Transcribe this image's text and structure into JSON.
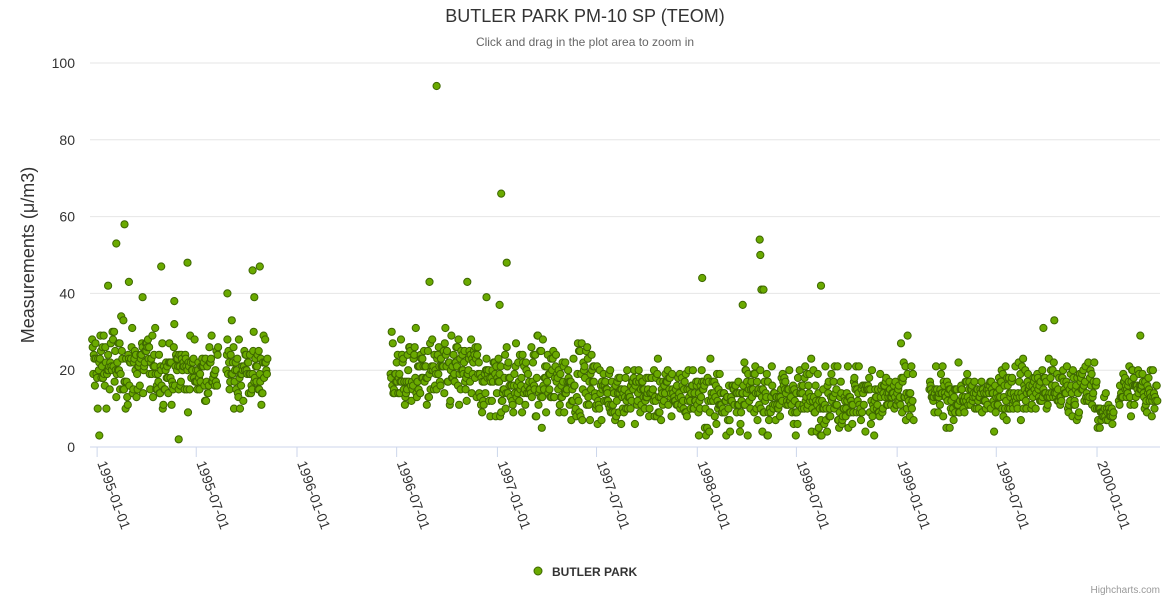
{
  "chart_data": {
    "type": "scatter",
    "title": "BUTLER PARK PM-10 SP (TEOM)",
    "subtitle": "Click and drag in the plot area to zoom in",
    "ylabel": "Measurements (μ/m3)",
    "xlabel": "",
    "ylim": [
      0,
      100
    ],
    "yticks": [
      0,
      20,
      40,
      60,
      80,
      100
    ],
    "xlim": [
      "1994-12-19",
      "2000-04-25"
    ],
    "xticks": [
      "1995-01-01",
      "1995-07-01",
      "1996-01-01",
      "1996-07-01",
      "1997-01-01",
      "1997-07-01",
      "1998-01-01",
      "1998-07-01",
      "1999-01-01",
      "1999-07-01",
      "2000-01-01"
    ],
    "grid": true,
    "legend": "bottom-center",
    "series": [
      {
        "name": "BUTLER PARK",
        "color": "#6aaa00",
        "note": "Daily samples (~1 per day) with gaps; representative values, plus notable peaks",
        "segments": [
          {
            "start": "1994-12-23",
            "end": "1995-04-08",
            "mean": 21,
            "spread": 9
          },
          {
            "start": "1995-04-09",
            "end": "1995-08-10",
            "mean": 20,
            "spread": 7
          },
          {
            "start": "1995-08-25",
            "end": "1995-11-08",
            "mean": 20,
            "spread": 8
          },
          {
            "start": "1996-06-20",
            "end": "1996-11-30",
            "mean": 19,
            "spread": 8
          },
          {
            "start": "1996-12-01",
            "end": "1997-06-30",
            "mean": 17,
            "spread": 8
          },
          {
            "start": "1997-07-01",
            "end": "1997-12-31",
            "mean": 14,
            "spread": 6
          },
          {
            "start": "1998-01-01",
            "end": "1998-06-30",
            "mean": 13,
            "spread": 7
          },
          {
            "start": "1998-07-01",
            "end": "1998-12-31",
            "mean": 13,
            "spread": 7
          },
          {
            "start": "1999-01-01",
            "end": "1999-01-31",
            "mean": 13,
            "spread": 8
          },
          {
            "start": "1999-03-01",
            "end": "1999-06-30",
            "mean": 13,
            "spread": 5
          },
          {
            "start": "1999-07-01",
            "end": "1999-12-31",
            "mean": 15,
            "spread": 6
          },
          {
            "start": "2000-01-01",
            "end": "2000-01-31",
            "mean": 9,
            "spread": 3
          },
          {
            "start": "2000-02-10",
            "end": "2000-04-20",
            "mean": 15,
            "spread": 6
          }
        ],
        "peaks": [
          {
            "date": "1996-09-12",
            "value": 94
          },
          {
            "date": "1997-01-08",
            "value": 66
          },
          {
            "date": "1995-02-20",
            "value": 58
          },
          {
            "date": "1998-04-25",
            "value": 54
          },
          {
            "date": "1995-02-05",
            "value": 53
          },
          {
            "date": "1998-04-26",
            "value": 50
          },
          {
            "date": "1997-01-18",
            "value": 48
          },
          {
            "date": "1995-06-15",
            "value": 48
          },
          {
            "date": "1995-04-28",
            "value": 47
          },
          {
            "date": "1995-10-25",
            "value": 47
          },
          {
            "date": "1995-10-12",
            "value": 46
          },
          {
            "date": "1998-01-10",
            "value": 44
          },
          {
            "date": "1996-08-30",
            "value": 43
          },
          {
            "date": "1996-11-07",
            "value": 43
          },
          {
            "date": "1995-02-28",
            "value": 43
          },
          {
            "date": "1998-08-15",
            "value": 42
          },
          {
            "date": "1995-01-21",
            "value": 42
          },
          {
            "date": "1998-04-28",
            "value": 41
          },
          {
            "date": "1998-05-02",
            "value": 41
          },
          {
            "date": "1995-08-27",
            "value": 40
          },
          {
            "date": "1996-12-12",
            "value": 39
          },
          {
            "date": "1995-03-25",
            "value": 39
          },
          {
            "date": "1995-10-15",
            "value": 39
          },
          {
            "date": "1995-05-22",
            "value": 38
          },
          {
            "date": "1998-03-25",
            "value": 37
          },
          {
            "date": "1997-01-05",
            "value": 37
          },
          {
            "date": "1999-09-25",
            "value": 31
          },
          {
            "date": "1999-10-15",
            "value": 33
          },
          {
            "date": "1999-01-20",
            "value": 29
          },
          {
            "date": "2000-03-20",
            "value": 29
          },
          {
            "date": "1998-01-04",
            "value": 3
          },
          {
            "date": "1995-05-30",
            "value": 2
          },
          {
            "date": "1995-01-05",
            "value": 3
          },
          {
            "date": "1998-05-10",
            "value": 3
          }
        ]
      }
    ]
  }
}
